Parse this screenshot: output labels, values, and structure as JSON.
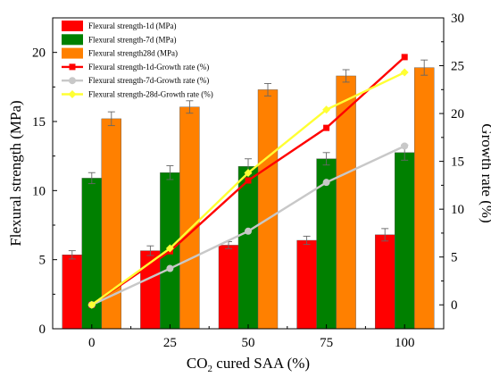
{
  "chart_data": {
    "type": "bar",
    "categories": [
      "0",
      "25",
      "50",
      "75",
      "100"
    ],
    "xlabel": "CO2 cured SAA (%)",
    "xlabel_parts": {
      "pre": "CO",
      "sub": "2",
      "post": " cured SAA (%)"
    },
    "ylabel": "Flexural strength (MPa)",
    "ylabel_right": "Growth rate (%)",
    "ylim": [
      0,
      22.5
    ],
    "ylim_right": [
      -2.5,
      30
    ],
    "yticks": [
      0,
      5,
      10,
      15,
      20
    ],
    "yticks_right": [
      0,
      5,
      10,
      15,
      20,
      25,
      30
    ],
    "legend_position": "top-left",
    "bar_series": [
      {
        "name": "Flexural strength-1d (MPa)",
        "color": "#ff0000",
        "values": [
          5.35,
          5.65,
          6.05,
          6.4,
          6.8
        ],
        "errors": [
          0.3,
          0.35,
          0.25,
          0.3,
          0.45
        ]
      },
      {
        "name": "Flexural strength-7d (MPa)",
        "color": "#008000",
        "values": [
          10.9,
          11.3,
          11.75,
          12.3,
          12.75
        ],
        "errors": [
          0.4,
          0.5,
          0.55,
          0.45,
          0.55
        ]
      },
      {
        "name": "Flexural strength28d (MPa)",
        "color": "#ff8000",
        "values": [
          15.2,
          16.05,
          17.3,
          18.3,
          18.9
        ],
        "errors": [
          0.5,
          0.45,
          0.45,
          0.45,
          0.55
        ]
      }
    ],
    "line_series": [
      {
        "name": "Flexural strength-1d-Growth rate (%)",
        "color": "#ff0000",
        "marker": "square",
        "values": [
          0,
          5.6,
          13.0,
          18.5,
          25.9
        ]
      },
      {
        "name": "Flexural strength-7d-Growth rate (%)",
        "color": "#c8c8c8",
        "marker": "circle",
        "values": [
          0,
          3.8,
          7.7,
          12.8,
          16.6
        ]
      },
      {
        "name": "Flexural strength-28d-Growth rate (%)",
        "color": "#ffff33",
        "marker": "diamond",
        "values": [
          0,
          5.9,
          13.8,
          20.4,
          24.3
        ]
      }
    ]
  }
}
